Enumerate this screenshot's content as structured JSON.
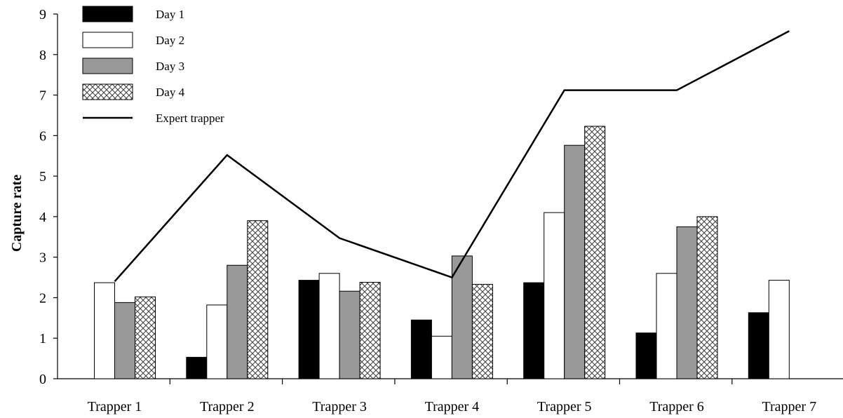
{
  "chart_data": {
    "type": "bar",
    "title": "",
    "xlabel": "",
    "ylabel": "Capture rate",
    "ylim": [
      0,
      9
    ],
    "yticks": [
      "0",
      "1",
      "2",
      "3",
      "4",
      "5",
      "6",
      "7",
      "8",
      "9"
    ],
    "grid": false,
    "legend_position": "top-left",
    "categories": [
      "Trapper 1",
      "Trapper 2",
      "Trapper 3",
      "Trapper 4",
      "Trapper 5",
      "Trapper 6",
      "Trapper 7"
    ],
    "series": [
      {
        "name": "Day 1",
        "type": "bar",
        "style": "solid-black",
        "values": [
          null,
          0.53,
          2.43,
          1.45,
          2.37,
          1.13,
          1.63
        ]
      },
      {
        "name": "Day 2",
        "type": "bar",
        "style": "white",
        "values": [
          2.37,
          1.82,
          2.6,
          1.05,
          4.1,
          2.6,
          2.43
        ]
      },
      {
        "name": "Day 3",
        "type": "bar",
        "style": "gray",
        "values": [
          1.88,
          2.8,
          2.16,
          3.03,
          5.76,
          3.75,
          null
        ]
      },
      {
        "name": "Day 4",
        "type": "bar",
        "style": "crosshatch",
        "values": [
          2.02,
          3.9,
          2.38,
          2.33,
          6.23,
          4.0,
          null
        ]
      },
      {
        "name": "Expert trapper",
        "type": "line",
        "style": "black-line",
        "values": [
          2.4,
          5.52,
          3.47,
          2.5,
          7.12,
          7.12,
          8.58
        ]
      }
    ],
    "colors": {
      "day1": "#000000",
      "day2": "#ffffff",
      "day3": "#999999",
      "line": "#000000"
    }
  }
}
